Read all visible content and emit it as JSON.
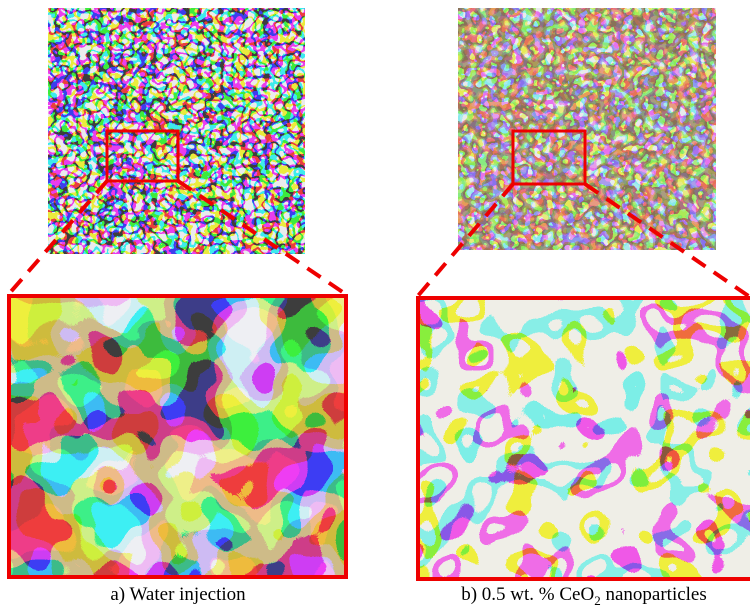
{
  "panels": [
    {
      "caption": "a) Water injection"
    },
    {
      "caption_parts": [
        "b) 0.5 wt. % CeO",
        "2",
        " nanoparticles"
      ]
    }
  ]
}
